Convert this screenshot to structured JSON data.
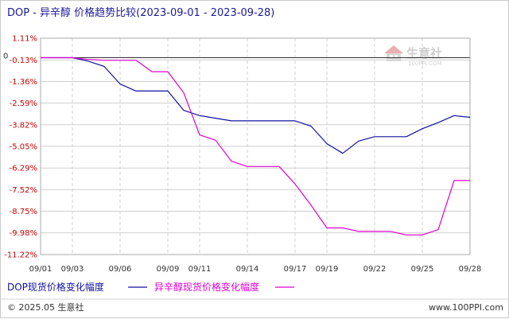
{
  "header": {
    "title": "DOP - 异辛醇 价格趋势比较(2023-09-01 - 2023-09-28)"
  },
  "footer": {
    "copyright": "© 2025.05 生意社",
    "site": "www.100PPI.com"
  },
  "watermark": {
    "name": "生意社",
    "sub": "100PPI.COM"
  },
  "colors": {
    "series_dop": "#1010a0",
    "series_isooctanol": "#e000d0",
    "grid": "#d0d0d0",
    "axis_label": "#cc0000"
  },
  "chart_data": {
    "type": "line",
    "title": "DOP - 异辛醇 价格趋势比较(2023-09-01 - 2023-09-28)",
    "xlabel": "",
    "ylabel": "",
    "y_unit": "%",
    "ylim": [
      -11.22,
      1.11
    ],
    "yticks": [
      "1.11%",
      "-0.13%",
      "-1.36%",
      "-2.59%",
      "-3.82%",
      "-5.05%",
      "-6.29%",
      "-7.52%",
      "-8.75%",
      "-9.98%",
      "-11.22%"
    ],
    "ytick_values": [
      1.11,
      -0.13,
      -1.36,
      -2.59,
      -3.82,
      -5.05,
      -6.29,
      -7.52,
      -8.75,
      -9.98,
      -11.22
    ],
    "zero_label": "0",
    "x_range": [
      1,
      28
    ],
    "xticks": [
      "09/01",
      "09/03",
      "09/06",
      "09/09",
      "09/11",
      "09/14",
      "09/17",
      "09/19",
      "09/22",
      "09/25",
      "09/28"
    ],
    "xtick_days": [
      1,
      3,
      6,
      9,
      11,
      14,
      17,
      19,
      22,
      25,
      28
    ],
    "grid": true,
    "legend_position": "bottom-left",
    "series": [
      {
        "name": "DOP现货价格变化幅度",
        "color": "#1010a0",
        "days": [
          1,
          3,
          4,
          5,
          6,
          7,
          8,
          9,
          10,
          11,
          12,
          13,
          14,
          15,
          16,
          17,
          18,
          19,
          20,
          21,
          22,
          23,
          24,
          25,
          26,
          27,
          28
        ],
        "values": [
          0,
          0,
          -0.2,
          -0.5,
          -1.5,
          -1.9,
          -1.9,
          -1.9,
          -3.0,
          -3.3,
          -3.45,
          -3.6,
          -3.6,
          -3.6,
          -3.6,
          -3.6,
          -3.9,
          -4.9,
          -5.45,
          -4.75,
          -4.5,
          -4.5,
          -4.5,
          -4.05,
          -3.7,
          -3.3,
          -3.4
        ]
      },
      {
        "name": "异辛醇现货价格变化幅度",
        "color": "#e000d0",
        "days": [
          1,
          2,
          3,
          4,
          5,
          6,
          7,
          8,
          9,
          10,
          11,
          12,
          13,
          14,
          15,
          16,
          17,
          18,
          19,
          20,
          21,
          22,
          23,
          24,
          25,
          26,
          27,
          28
        ],
        "values": [
          0,
          0,
          0,
          -0.1,
          -0.15,
          -0.15,
          -0.15,
          -0.8,
          -0.8,
          -2.0,
          -4.4,
          -4.7,
          -5.9,
          -6.2,
          -6.2,
          -6.2,
          -7.2,
          -8.4,
          -9.7,
          -9.7,
          -9.9,
          -9.9,
          -9.9,
          -10.1,
          -10.1,
          -9.8,
          -7.0,
          -7.0
        ]
      }
    ]
  }
}
